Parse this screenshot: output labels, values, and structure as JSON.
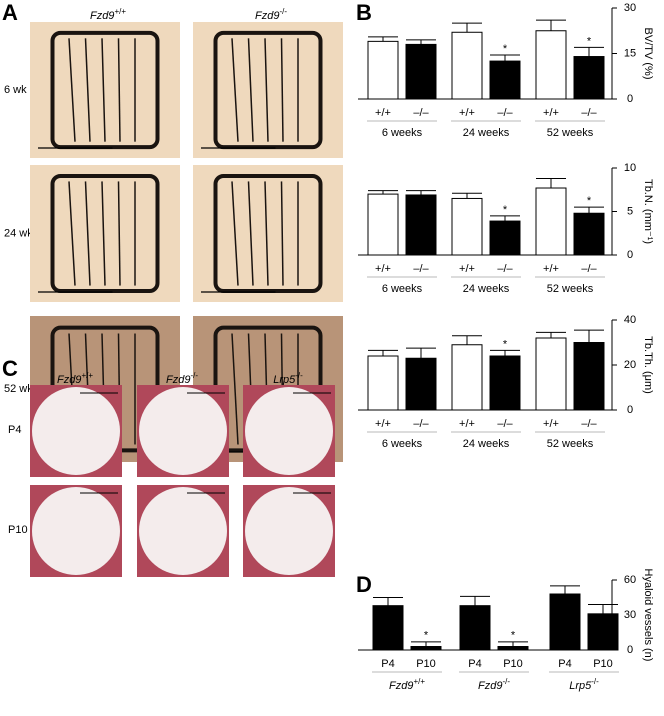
{
  "panels": {
    "A": {
      "letter": "A",
      "columns": [
        {
          "gene": "Fzd9",
          "genotype": "+/+"
        },
        {
          "gene": "Fzd9",
          "genotype": "-/-"
        }
      ],
      "rows": [
        "6 wk",
        "24 wk",
        "52 wk"
      ]
    },
    "C": {
      "letter": "C",
      "columns": [
        {
          "gene": "Fzd9",
          "genotype": "+/+"
        },
        {
          "gene": "Fzd9",
          "genotype": "-/-"
        },
        {
          "gene": "Lrp5",
          "genotype": "-/-"
        }
      ],
      "rows": [
        "P4",
        "P10"
      ]
    }
  },
  "chart_data": [
    {
      "type": "bar",
      "letter": "B",
      "ylabel": "BV/TV (%)",
      "categories": [
        "+/+",
        "–/–",
        "+/+",
        "–/–",
        "+/+",
        "–/–"
      ],
      "groups": [
        "6 weeks",
        "24 weeks",
        "52 weeks"
      ],
      "values": [
        19,
        18,
        22,
        12.5,
        22.5,
        14
      ],
      "errors": [
        1.5,
        1.5,
        3,
        2,
        3.5,
        3
      ],
      "significance": [
        null,
        null,
        null,
        "*",
        null,
        "*"
      ],
      "colors": [
        "#ffffff",
        "#000000",
        "#ffffff",
        "#000000",
        "#ffffff",
        "#000000"
      ],
      "ylim": [
        0,
        30
      ],
      "yticks": [
        0,
        15,
        30
      ]
    },
    {
      "type": "bar",
      "ylabel": "Tb.N. (mm⁻¹)",
      "categories": [
        "+/+",
        "–/–",
        "+/+",
        "–/–",
        "+/+",
        "–/–"
      ],
      "groups": [
        "6 weeks",
        "24 weeks",
        "52 weeks"
      ],
      "values": [
        7,
        6.9,
        6.5,
        3.9,
        7.7,
        4.8
      ],
      "errors": [
        0.4,
        0.5,
        0.6,
        0.6,
        1.1,
        0.7
      ],
      "significance": [
        null,
        null,
        null,
        "*",
        null,
        "*"
      ],
      "colors": [
        "#ffffff",
        "#000000",
        "#ffffff",
        "#000000",
        "#ffffff",
        "#000000"
      ],
      "ylim": [
        0,
        10
      ],
      "yticks": [
        0,
        5,
        10
      ]
    },
    {
      "type": "bar",
      "ylabel": "Tb.Th. (μm)",
      "categories": [
        "+/+",
        "–/–",
        "+/+",
        "–/–",
        "+/+",
        "–/–"
      ],
      "groups": [
        "6 weeks",
        "24 weeks",
        "52 weeks"
      ],
      "values": [
        24,
        23,
        29,
        24,
        32,
        30
      ],
      "errors": [
        2.5,
        4.5,
        4,
        2.5,
        2.5,
        5.5
      ],
      "significance": [
        null,
        null,
        null,
        "*",
        null,
        null
      ],
      "colors": [
        "#ffffff",
        "#000000",
        "#ffffff",
        "#000000",
        "#ffffff",
        "#000000"
      ],
      "ylim": [
        0,
        40
      ],
      "yticks": [
        0,
        20,
        40
      ]
    },
    {
      "type": "bar",
      "letter": "D",
      "ylabel": "Hyaloid vessels (n)",
      "categories": [
        "P4",
        "P10",
        "P4",
        "P10",
        "P4",
        "P10"
      ],
      "groups": [
        {
          "gene": "Fzd9",
          "genotype": "+/+"
        },
        {
          "gene": "Fzd9",
          "genotype": "-/-"
        },
        {
          "gene": "Lrp5",
          "genotype": "-/-"
        }
      ],
      "values": [
        38,
        3,
        38,
        3,
        48,
        31
      ],
      "errors": [
        7,
        4,
        8,
        4,
        7,
        8
      ],
      "significance": [
        null,
        "*",
        null,
        "*",
        null,
        null
      ],
      "colors": [
        "#000000",
        "#000000",
        "#000000",
        "#000000",
        "#000000",
        "#000000"
      ],
      "ylim": [
        0,
        60
      ],
      "yticks": [
        0,
        30,
        60
      ]
    }
  ]
}
